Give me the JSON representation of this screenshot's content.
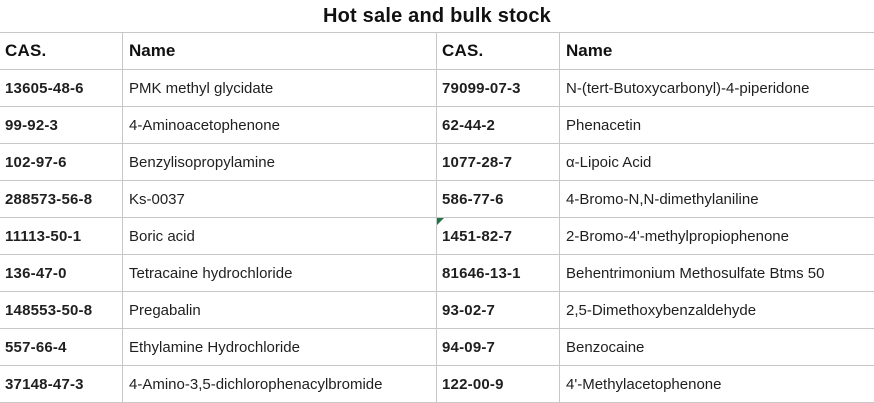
{
  "title": "Hot sale and bulk stock",
  "table": {
    "headers": [
      "CAS.",
      "Name",
      "CAS.",
      "Name"
    ],
    "rows": [
      [
        "13605-48-6",
        "PMK methyl glycidate",
        "79099-07-3",
        "N-(tert-Butoxycarbonyl)-4-piperidone"
      ],
      [
        "99-92-3",
        "4-Aminoacetophenone",
        "62-44-2",
        "Phenacetin"
      ],
      [
        "102-97-6",
        "Benzylisopropylamine",
        "1077-28-7",
        "α-Lipoic Acid"
      ],
      [
        "288573-56-8",
        "Ks-0037",
        "586-77-6",
        "4-Bromo-N,N-dimethylaniline"
      ],
      [
        "11113-50-1",
        "Boric acid",
        "1451-82-7",
        "2-Bromo-4'-methylpropiophenone"
      ],
      [
        "136-47-0",
        "Tetracaine hydrochloride",
        "81646-13-1",
        "Behentrimonium Methosulfate Btms 50"
      ],
      [
        "148553-50-8",
        "Pregabalin",
        "93-02-7",
        "2,5-Dimethoxybenzaldehyde"
      ],
      [
        "557-66-4",
        "Ethylamine Hydrochloride",
        "94-09-7",
        "Benzocaine"
      ],
      [
        "37148-47-3",
        "4-Amino-3,5-dichlorophenacylbromide",
        "122-00-9",
        "4'-Methylacetophenone"
      ]
    ],
    "error_marker": {
      "icon": "cell-error-indicator-icon",
      "cell_value": "1451-82-7",
      "row_index": 4,
      "col_index": 2,
      "color": "#217346"
    }
  },
  "colors": {
    "background": "#ffffff",
    "gridline": "#c7c7c7",
    "text": "#1f1f1f",
    "marker_green": "#217346"
  }
}
